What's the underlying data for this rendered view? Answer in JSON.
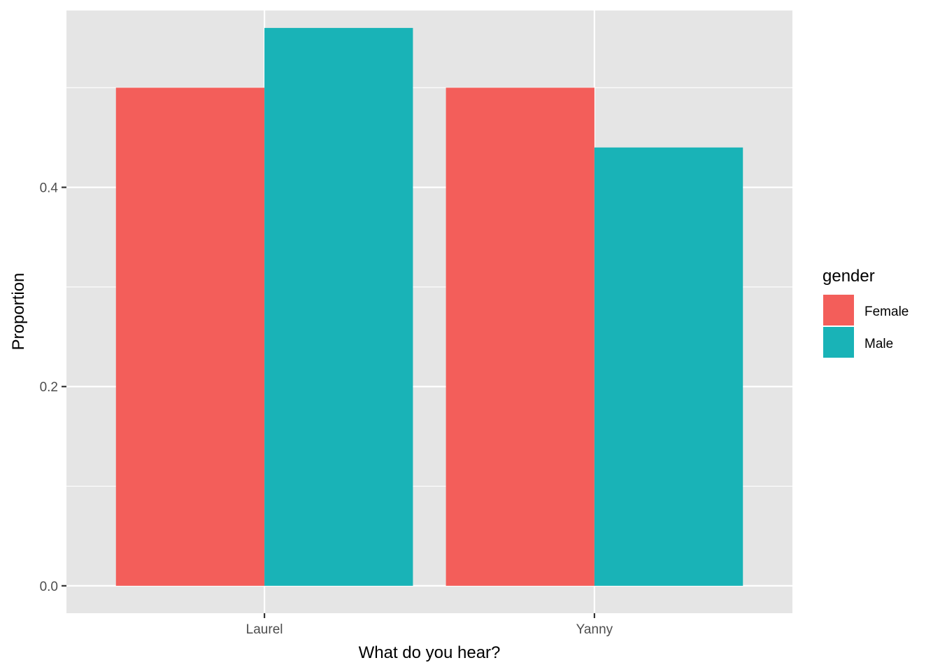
{
  "chart_data": {
    "type": "bar",
    "categories": [
      "Laurel",
      "Yanny"
    ],
    "series": [
      {
        "name": "Female",
        "values": [
          0.5,
          0.5
        ],
        "color": "#F35E5A"
      },
      {
        "name": "Male",
        "values": [
          0.56,
          0.44
        ],
        "color": "#19B3B7"
      }
    ],
    "xlabel": "What do you hear?",
    "ylabel": "Proportion",
    "ylim": [
      -0.0275,
      0.5775
    ],
    "yticks": [
      0.0,
      0.2,
      0.4
    ],
    "yticks_minor": [
      0.1,
      0.3,
      0.5
    ],
    "ytick_labels": [
      "0.0",
      "0.2",
      "0.4"
    ],
    "grid": true,
    "legend": {
      "title": "gender",
      "position": "right",
      "entries": [
        "Female",
        "Male"
      ]
    },
    "panel_background": "#E5E5E5",
    "grid_color": "#FFFFFF"
  }
}
